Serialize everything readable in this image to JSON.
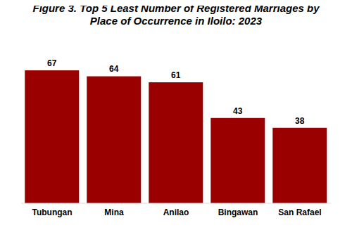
{
  "chart_data": {
    "type": "bar",
    "title": "Figure 3. Top 5 Least Number of Registered Marriages by Place of Occurrence in Iloilo: 2023",
    "categories": [
      "Tubungan",
      "Mina",
      "Anilao",
      "Bingawan",
      "San Rafael"
    ],
    "values": [
      67,
      64,
      61,
      43,
      38
    ],
    "color": "#9b0000",
    "data_labels": true,
    "grid": false,
    "tick_labels": "x"
  }
}
